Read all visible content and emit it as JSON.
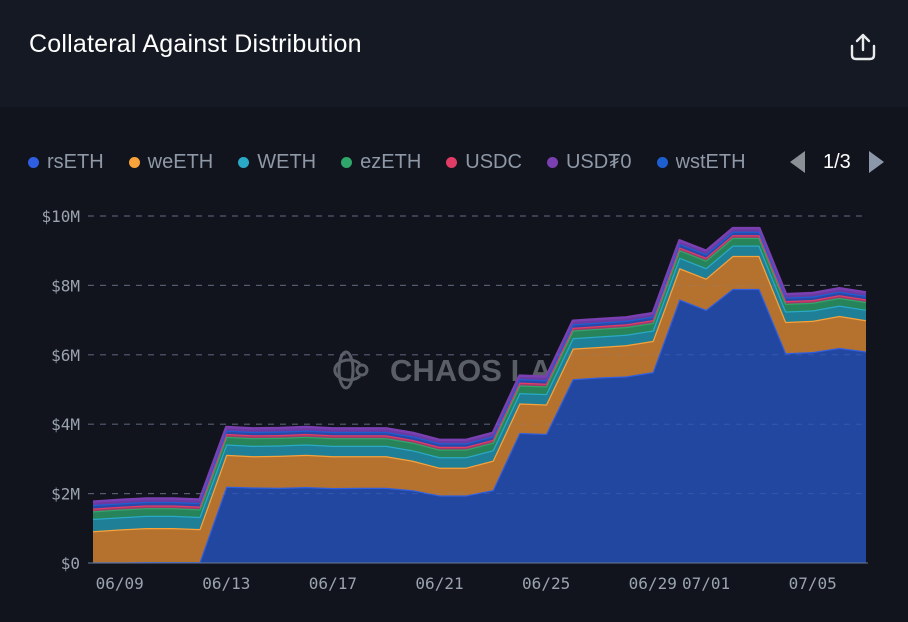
{
  "header": {
    "title": "Collateral Against Distribution",
    "share_icon": "share-upload-icon"
  },
  "legend": {
    "items": [
      {
        "label": "rsETH",
        "color": "#2f5fe0"
      },
      {
        "label": "weETH",
        "color": "#f7a23b"
      },
      {
        "label": "WETH",
        "color": "#2aa9c7"
      },
      {
        "label": "ezETH",
        "color": "#2fa66a"
      },
      {
        "label": "USDC",
        "color": "#e03c66"
      },
      {
        "label": "USD₮0",
        "color": "#7a3fb0"
      },
      {
        "label": "wstETH",
        "color": "#1e5fd0"
      }
    ],
    "pager": {
      "text": "1/3",
      "prev_icon": "triangle-left-icon",
      "next_icon": "triangle-right-icon"
    }
  },
  "watermark": {
    "text": "CHAOS LABS",
    "icon": "chaos-labs-logo-icon"
  },
  "chart_data": {
    "type": "area",
    "stacked": true,
    "title": "Collateral Against Distribution",
    "xlabel": "",
    "ylabel": "",
    "ylim": [
      0,
      10
    ],
    "y_unit": "$M",
    "y_ticks": [
      0,
      2,
      4,
      6,
      8,
      10
    ],
    "y_tick_labels": [
      "$0",
      "$2M",
      "$4M",
      "$6M",
      "$8M",
      "$10M"
    ],
    "grid": true,
    "legend_position": "top",
    "x_tick_labels": [
      "06/09",
      "06/13",
      "06/17",
      "06/21",
      "06/25",
      "06/29",
      "07/01",
      "07/05"
    ],
    "x": [
      "06/08",
      "06/09",
      "06/10",
      "06/11",
      "06/12",
      "06/13",
      "06/14",
      "06/15",
      "06/16",
      "06/17",
      "06/18",
      "06/19",
      "06/20",
      "06/21",
      "06/22",
      "06/23",
      "06/24",
      "06/25",
      "06/26",
      "06/27",
      "06/28",
      "06/29",
      "06/30",
      "07/01",
      "07/02",
      "07/03",
      "07/04",
      "07/05",
      "07/06",
      "07/07"
    ],
    "series": [
      {
        "name": "rsETH",
        "color": "#2f5fe0",
        "fill": "#2247a0",
        "values": [
          0.02,
          0.02,
          0.03,
          0.03,
          0.03,
          2.2,
          2.18,
          2.17,
          2.19,
          2.16,
          2.17,
          2.17,
          2.1,
          1.95,
          1.95,
          2.1,
          3.75,
          3.72,
          5.3,
          5.35,
          5.38,
          5.5,
          7.6,
          7.3,
          7.9,
          7.9,
          6.05,
          6.08,
          6.2,
          6.1
        ]
      },
      {
        "name": "weETH",
        "color": "#f7a23b",
        "fill": "#b5722e",
        "values": [
          0.9,
          0.95,
          0.98,
          0.98,
          0.95,
          0.92,
          0.9,
          0.92,
          0.93,
          0.92,
          0.91,
          0.91,
          0.85,
          0.8,
          0.8,
          0.85,
          0.85,
          0.85,
          0.88,
          0.88,
          0.9,
          0.9,
          0.9,
          0.9,
          0.95,
          0.95,
          0.9,
          0.9,
          0.92,
          0.9
        ]
      },
      {
        "name": "WETH",
        "color": "#2aa9c7",
        "fill": "#1f7f96",
        "values": [
          0.35,
          0.35,
          0.35,
          0.35,
          0.35,
          0.3,
          0.3,
          0.3,
          0.3,
          0.3,
          0.3,
          0.3,
          0.3,
          0.3,
          0.3,
          0.3,
          0.3,
          0.3,
          0.3,
          0.3,
          0.3,
          0.3,
          0.3,
          0.3,
          0.3,
          0.3,
          0.3,
          0.3,
          0.3,
          0.3
        ]
      },
      {
        "name": "ezETH",
        "color": "#2fa66a",
        "fill": "#27835a",
        "values": [
          0.22,
          0.22,
          0.22,
          0.22,
          0.22,
          0.22,
          0.22,
          0.22,
          0.22,
          0.22,
          0.22,
          0.22,
          0.22,
          0.22,
          0.22,
          0.22,
          0.22,
          0.22,
          0.22,
          0.22,
          0.22,
          0.22,
          0.22,
          0.22,
          0.22,
          0.22,
          0.22,
          0.22,
          0.22,
          0.22
        ]
      },
      {
        "name": "USDC",
        "color": "#e03c66",
        "fill": "#a03a6a",
        "values": [
          0.08,
          0.08,
          0.08,
          0.08,
          0.08,
          0.08,
          0.08,
          0.08,
          0.08,
          0.08,
          0.08,
          0.08,
          0.08,
          0.08,
          0.08,
          0.08,
          0.08,
          0.08,
          0.08,
          0.08,
          0.08,
          0.08,
          0.08,
          0.08,
          0.08,
          0.08,
          0.08,
          0.08,
          0.08,
          0.08
        ]
      },
      {
        "name": "wstETH",
        "color": "#1e5fd0",
        "fill": "#2a48a8",
        "values": [
          0.1,
          0.1,
          0.1,
          0.1,
          0.1,
          0.1,
          0.1,
          0.1,
          0.1,
          0.1,
          0.1,
          0.1,
          0.1,
          0.1,
          0.1,
          0.1,
          0.1,
          0.1,
          0.1,
          0.1,
          0.1,
          0.1,
          0.1,
          0.1,
          0.1,
          0.1,
          0.1,
          0.1,
          0.1,
          0.1
        ]
      },
      {
        "name": "USD₮0",
        "color": "#7a3fb0",
        "fill": "#6a3aa0",
        "values": [
          0.1,
          0.1,
          0.1,
          0.1,
          0.1,
          0.1,
          0.1,
          0.1,
          0.1,
          0.1,
          0.1,
          0.1,
          0.1,
          0.1,
          0.1,
          0.1,
          0.1,
          0.1,
          0.1,
          0.1,
          0.1,
          0.1,
          0.1,
          0.1,
          0.1,
          0.1,
          0.1,
          0.1,
          0.1,
          0.1
        ]
      }
    ]
  }
}
